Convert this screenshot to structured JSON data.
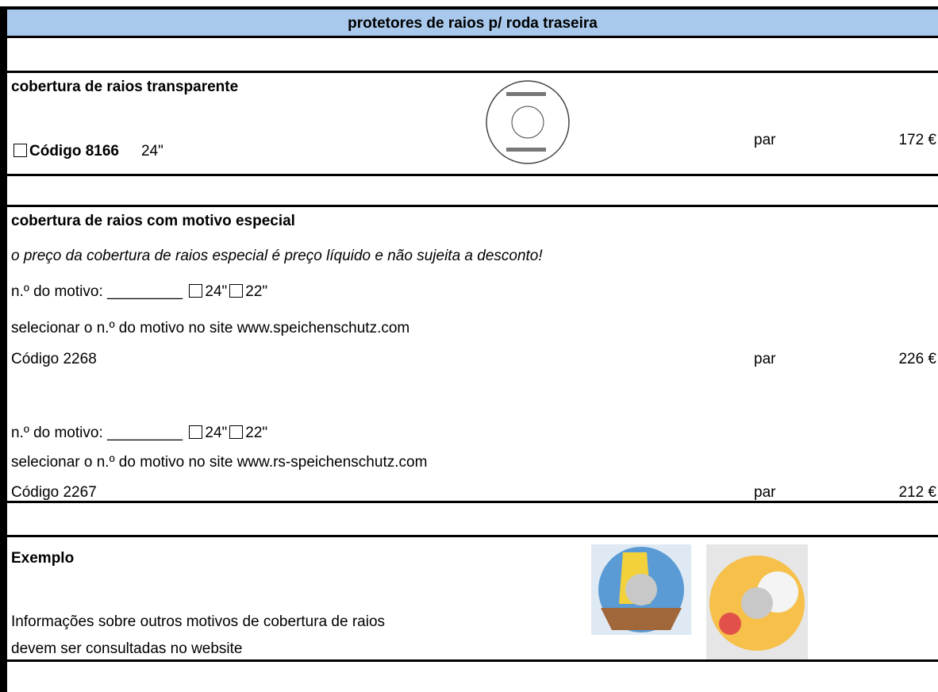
{
  "header": {
    "title": "protetores de raios p/ roda traseira"
  },
  "section1": {
    "title": "cobertura de raios transparente",
    "code": "Código 8166",
    "size": "24\"",
    "unit": "par",
    "price": "172 €"
  },
  "section2": {
    "title": "cobertura de raios com motivo especial",
    "note": "o preço da cobertura de raios especial é preço líquido e não sujeita a desconto!",
    "items": [
      {
        "motif_label": "n.º do motivo: _________",
        "option1": "24\"",
        "option2": "22\"",
        "instruction": "selecionar o n.º do motivo no site www.speichenschutz.com",
        "code": "Código 2268",
        "unit": "par",
        "price": "226 €"
      },
      {
        "motif_label": "n.º do motivo: _________",
        "option1": "24\"",
        "option2": "22\"",
        "instruction": "selecionar o n.º do motivo no site www.rs-speichenschutz.com",
        "code": "Código 2267",
        "unit": "par",
        "price": "212 €"
      }
    ]
  },
  "section3": {
    "title": "Exemplo",
    "info": [
      "Informações sobre outros motivos de cobertura de raios",
      "devem ser consultadas no website"
    ]
  }
}
